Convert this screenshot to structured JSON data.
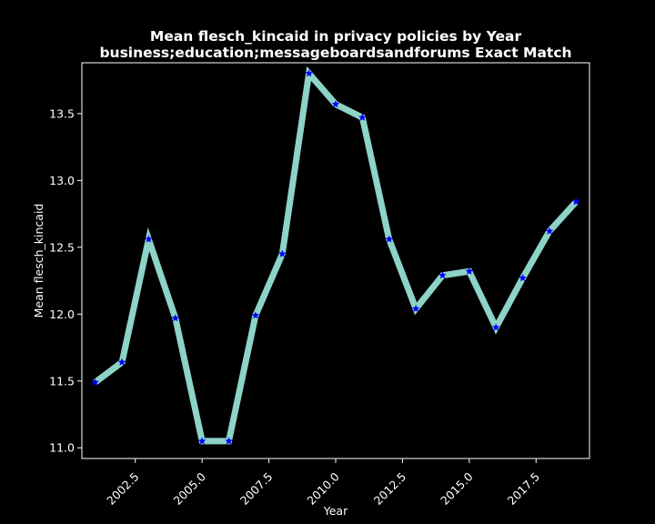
{
  "chart_data": {
    "type": "line",
    "title": "Mean flesch_kincaid in privacy policies by Year",
    "subtitle": "business;education;messageboardsandforums Exact Match",
    "xlabel": "Year",
    "ylabel": "Mean flesch_kincaid",
    "xlim": [
      2000.5,
      2019.5
    ],
    "ylim": [
      10.92,
      13.88
    ],
    "xticks": [
      2002.5,
      2005.0,
      2007.5,
      2010.0,
      2012.5,
      2015.0,
      2017.5
    ],
    "xtick_labels": [
      "2002.5",
      "2005.0",
      "2007.5",
      "2010.0",
      "2012.5",
      "2015.0",
      "2017.5"
    ],
    "yticks": [
      11.0,
      11.5,
      12.0,
      12.5,
      13.0,
      13.5
    ],
    "ytick_labels": [
      "11.0",
      "11.5",
      "12.0",
      "12.5",
      "13.0",
      "13.5"
    ],
    "grid": false,
    "series": [
      {
        "x": [
          2001,
          2002,
          2003,
          2004,
          2005,
          2006,
          2007,
          2008,
          2009,
          2010,
          2011,
          2012,
          2013,
          2014,
          2015,
          2016,
          2017,
          2018,
          2019
        ],
        "y": [
          11.49,
          11.64,
          12.56,
          11.97,
          11.05,
          11.05,
          11.99,
          12.45,
          13.8,
          13.57,
          13.47,
          12.56,
          12.04,
          12.29,
          12.32,
          11.9,
          12.27,
          12.62,
          12.84
        ],
        "line_color": "#8dd3c7",
        "marker": "star",
        "marker_color": "#0000ff"
      }
    ]
  }
}
